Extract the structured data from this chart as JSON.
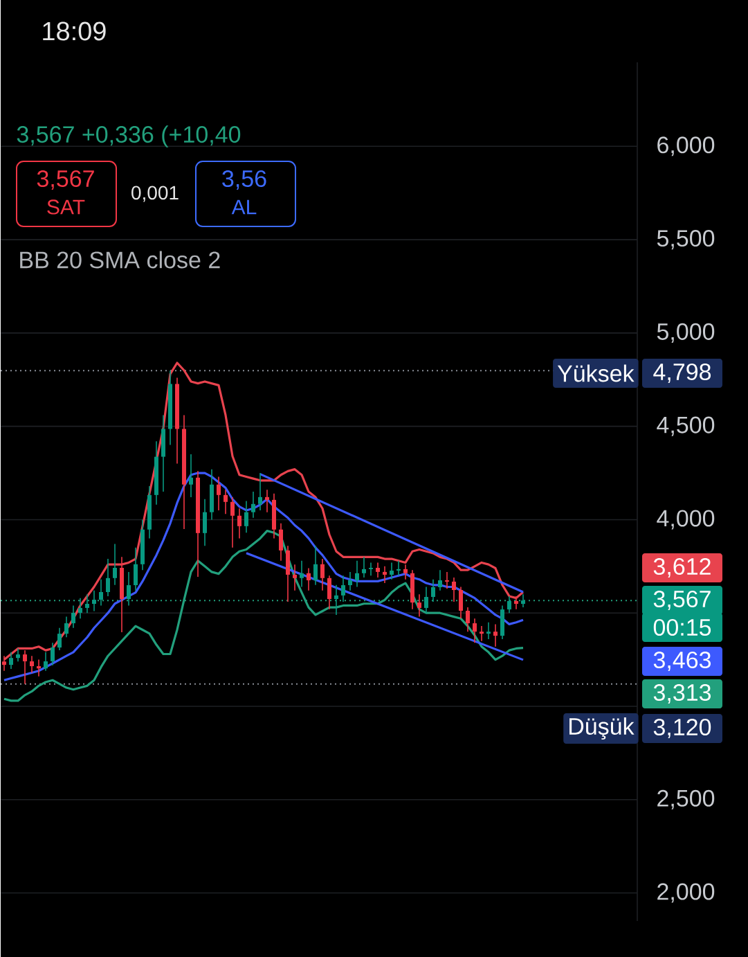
{
  "chart_data": {
    "type": "candlestick",
    "subtitle": "3,567  +0,336 (+10,40",
    "categories": [
      null,
      null,
      null,
      null,
      null,
      null,
      null,
      null,
      null,
      null,
      null,
      null,
      null,
      null,
      null,
      null,
      null,
      null,
      null,
      null,
      null,
      null,
      null,
      null,
      null,
      null,
      null,
      null,
      null,
      null,
      null,
      null,
      null,
      null,
      null,
      null,
      null,
      null,
      null,
      null,
      null,
      null,
      null,
      null,
      null,
      null,
      null,
      null,
      null,
      null,
      null,
      null,
      null,
      null,
      null,
      null,
      null,
      null,
      null,
      null,
      null,
      null,
      null,
      null,
      null,
      null,
      null,
      null,
      null,
      null,
      null,
      null,
      null,
      null,
      null,
      null
    ],
    "ohlc": [
      [
        3.24,
        3.27,
        3.19,
        3.222
      ],
      [
        3.222,
        3.29,
        3.2,
        3.259
      ],
      [
        3.259,
        3.31,
        3.24,
        3.278
      ],
      [
        3.278,
        3.3,
        3.12,
        3.241
      ],
      [
        3.241,
        3.27,
        3.18,
        3.215
      ],
      [
        3.215,
        3.25,
        3.16,
        3.203
      ],
      [
        3.203,
        3.29,
        3.19,
        3.241
      ],
      [
        3.241,
        3.34,
        3.22,
        3.315
      ],
      [
        3.315,
        3.42,
        3.3,
        3.389
      ],
      [
        3.389,
        3.48,
        3.37,
        3.445
      ],
      [
        3.445,
        3.54,
        3.42,
        3.501
      ],
      [
        3.501,
        3.58,
        3.47,
        3.527
      ],
      [
        3.527,
        3.6,
        3.5,
        3.549
      ],
      [
        3.549,
        3.62,
        3.51,
        3.571
      ],
      [
        3.571,
        3.68,
        3.54,
        3.612
      ],
      [
        3.612,
        3.79,
        3.59,
        3.687
      ],
      [
        3.687,
        3.87,
        3.65,
        3.742
      ],
      [
        3.742,
        3.8,
        3.397,
        3.575
      ],
      [
        3.575,
        3.72,
        3.54,
        3.649
      ],
      [
        3.649,
        3.85,
        3.62,
        3.761
      ],
      [
        3.761,
        4.0,
        3.73,
        3.947
      ],
      [
        3.947,
        4.18,
        3.9,
        4.132
      ],
      [
        4.132,
        4.42,
        4.08,
        4.337
      ],
      [
        4.337,
        4.56,
        4.15,
        4.486
      ],
      [
        4.486,
        4.798,
        4.4,
        4.727
      ],
      [
        4.727,
        4.76,
        4.3,
        4.486
      ],
      [
        4.486,
        4.56,
        3.95,
        4.188
      ],
      [
        4.188,
        4.35,
        4.12,
        4.225
      ],
      [
        4.225,
        4.26,
        3.694,
        3.928
      ],
      [
        3.928,
        4.11,
        3.86,
        4.04
      ],
      [
        4.04,
        4.27,
        4.0,
        4.188
      ],
      [
        4.188,
        4.23,
        4.05,
        4.132
      ],
      [
        4.132,
        4.16,
        4.03,
        4.095
      ],
      [
        4.095,
        4.12,
        3.85,
        4.021
      ],
      [
        4.021,
        4.06,
        3.9,
        3.965
      ],
      [
        3.965,
        4.1,
        3.93,
        4.04
      ],
      [
        4.04,
        4.15,
        4.01,
        4.084
      ],
      [
        4.084,
        4.25,
        4.05,
        4.121
      ],
      [
        4.121,
        4.16,
        4.04,
        4.106
      ],
      [
        4.106,
        4.14,
        3.9,
        3.947
      ],
      [
        3.947,
        3.98,
        3.78,
        3.835
      ],
      [
        3.835,
        3.86,
        3.56,
        3.705
      ],
      [
        3.705,
        3.76,
        3.62,
        3.687
      ],
      [
        3.687,
        3.78,
        3.64,
        3.713
      ],
      [
        3.713,
        3.74,
        3.62,
        3.675
      ],
      [
        3.675,
        3.86,
        3.65,
        3.761
      ],
      [
        3.761,
        3.79,
        3.62,
        3.687
      ],
      [
        3.687,
        3.7,
        3.52,
        3.575
      ],
      [
        3.575,
        3.65,
        3.49,
        3.594
      ],
      [
        3.594,
        3.7,
        3.56,
        3.649
      ],
      [
        3.649,
        3.72,
        3.62,
        3.675
      ],
      [
        3.675,
        3.78,
        3.64,
        3.713
      ],
      [
        3.713,
        3.8,
        3.69,
        3.735
      ],
      [
        3.735,
        3.77,
        3.7,
        3.742
      ],
      [
        3.742,
        3.77,
        3.69,
        3.72
      ],
      [
        3.72,
        3.75,
        3.66,
        3.705
      ],
      [
        3.705,
        3.77,
        3.68,
        3.727
      ],
      [
        3.727,
        3.78,
        3.7,
        3.735
      ],
      [
        3.735,
        3.76,
        3.68,
        3.713
      ],
      [
        3.713,
        3.73,
        3.52,
        3.556
      ],
      [
        3.556,
        3.6,
        3.48,
        3.527
      ],
      [
        3.527,
        3.64,
        3.5,
        3.586
      ],
      [
        3.586,
        3.68,
        3.56,
        3.638
      ],
      [
        3.638,
        3.73,
        3.62,
        3.675
      ],
      [
        3.675,
        3.72,
        3.63,
        3.668
      ],
      [
        3.668,
        3.69,
        3.56,
        3.623
      ],
      [
        3.623,
        3.64,
        3.47,
        3.512
      ],
      [
        3.512,
        3.53,
        3.4,
        3.445
      ],
      [
        3.445,
        3.47,
        3.34,
        3.4
      ],
      [
        3.4,
        3.43,
        3.35,
        3.389
      ],
      [
        3.389,
        3.45,
        3.36,
        3.4
      ],
      [
        3.4,
        3.44,
        3.32,
        3.378
      ],
      [
        3.378,
        3.54,
        3.36,
        3.519
      ],
      [
        3.519,
        3.59,
        3.5,
        3.564
      ],
      [
        3.564,
        3.59,
        3.52,
        3.549
      ],
      [
        3.549,
        3.6,
        3.53,
        3.567
      ]
    ],
    "colors": [
      "#f23645",
      "#089981",
      "#089981",
      "#f23645",
      "#f23645",
      "#f23645",
      "#089981",
      "#089981",
      "#089981",
      "#089981",
      "#089981",
      "#089981",
      "#089981",
      "#089981",
      "#089981",
      "#089981",
      "#089981",
      "#f23645",
      "#089981",
      "#089981",
      "#089981",
      "#089981",
      "#089981",
      "#089981",
      "#089981",
      "#f23645",
      "#f23645",
      "#089981",
      "#f23645",
      "#089981",
      "#089981",
      "#f23645",
      "#f23645",
      "#f23645",
      "#f23645",
      "#089981",
      "#089981",
      "#089981",
      "#f23645",
      "#f23645",
      "#f23645",
      "#f23645",
      "#f23645",
      "#089981",
      "#f23645",
      "#089981",
      "#f23645",
      "#f23645",
      "#089981",
      "#089981",
      "#089981",
      "#089981",
      "#089981",
      "#089981",
      "#f23645",
      "#f23645",
      "#089981",
      "#089981",
      "#f23645",
      "#f23645",
      "#f23645",
      "#089981",
      "#089981",
      "#089981",
      "#f23645",
      "#f23645",
      "#f23645",
      "#f23645",
      "#f23645",
      "#f23645",
      "#089981",
      "#f23645",
      "#089981",
      "#089981",
      "#f23645",
      "#089981"
    ],
    "series": [
      {
        "type": "line",
        "color": "#e8434e",
        "values": [
          3.25,
          3.28,
          3.31,
          3.31,
          3.31,
          3.32,
          3.3,
          3.31,
          3.36,
          3.41,
          3.47,
          3.54,
          3.59,
          3.64,
          3.7,
          3.76,
          3.76,
          3.76,
          3.77,
          3.79,
          null,
          null,
          null,
          4.49,
          4.78,
          4.84,
          4.8,
          4.74,
          4.73,
          4.74,
          4.73,
          4.72,
          4.56,
          4.34,
          4.24,
          4.23,
          4.22,
          4.21,
          4.21,
          4.21,
          4.24,
          4.26,
          4.27,
          4.24,
          4.15,
          4.12,
          4.06,
          3.92,
          3.83,
          3.8,
          3.8,
          3.8,
          3.8,
          3.8,
          3.8,
          3.79,
          3.79,
          3.78,
          3.77,
          3.83,
          3.84,
          3.83,
          3.82,
          3.8,
          3.79,
          3.77,
          3.73,
          3.73,
          3.75,
          3.77,
          3.76,
          3.74,
          3.65,
          3.59,
          3.58,
          3.612
        ]
      },
      {
        "type": "line",
        "color": "#3d5afe",
        "values": [
          3.14,
          3.15,
          3.16,
          3.17,
          3.18,
          3.19,
          3.21,
          3.23,
          3.25,
          3.27,
          3.29,
          3.33,
          3.37,
          3.42,
          3.46,
          3.5,
          3.55,
          3.57,
          3.59,
          3.61,
          3.67,
          3.74,
          3.81,
          3.89,
          3.98,
          4.09,
          4.18,
          4.24,
          4.25,
          4.25,
          4.23,
          4.2,
          4.17,
          4.11,
          4.07,
          4.05,
          4.06,
          4.08,
          4.11,
          4.07,
          4.04,
          4.01,
          3.97,
          3.94,
          3.9,
          3.85,
          3.81,
          3.76,
          3.71,
          3.69,
          3.68,
          3.67,
          3.67,
          3.67,
          3.67,
          3.68,
          3.69,
          3.7,
          3.71,
          3.69,
          3.68,
          3.66,
          3.65,
          3.65,
          3.64,
          3.64,
          3.62,
          3.6,
          3.58,
          3.55,
          3.52,
          3.49,
          3.47,
          3.44,
          3.45,
          3.463
        ]
      },
      {
        "type": "line",
        "color": "#22a07d",
        "values": [
          3.04,
          3.03,
          3.03,
          3.06,
          3.08,
          3.11,
          3.13,
          3.14,
          3.12,
          3.1,
          3.09,
          3.1,
          3.11,
          3.14,
          3.21,
          3.27,
          3.31,
          3.35,
          3.39,
          3.43,
          3.41,
          3.39,
          3.33,
          3.28,
          3.28,
          3.41,
          3.57,
          3.72,
          3.78,
          3.75,
          3.72,
          3.71,
          3.75,
          3.8,
          3.83,
          3.84,
          3.87,
          3.9,
          3.94,
          3.93,
          3.91,
          null,
          3.69,
          3.61,
          3.53,
          3.49,
          3.51,
          3.53,
          3.53,
          3.54,
          3.54,
          3.54,
          3.55,
          3.55,
          3.55,
          3.57,
          3.61,
          3.64,
          3.66,
          3.6,
          3.52,
          3.5,
          3.5,
          3.5,
          3.49,
          3.48,
          3.47,
          3.43,
          3.38,
          3.32,
          3.29,
          3.25,
          3.27,
          3.3,
          3.31,
          3.313
        ]
      },
      {
        "type": "line",
        "color": "#3d5afe",
        "values": [
          null,
          null,
          null,
          null,
          null,
          null,
          null,
          null,
          null,
          null,
          null,
          null,
          null,
          null,
          null,
          null,
          null,
          null,
          null,
          null,
          null,
          null,
          null,
          null,
          null,
          null,
          null,
          null,
          null,
          null,
          null,
          null,
          null,
          null,
          null,
          null,
          null,
          4.244,
          null,
          null,
          null,
          null,
          null,
          null,
          null,
          null,
          null,
          null,
          null,
          null,
          null,
          null,
          null,
          null,
          null,
          null,
          null,
          null,
          null,
          null,
          null,
          null,
          null,
          null,
          null,
          null,
          null,
          null,
          null,
          null,
          null,
          null,
          null,
          null,
          null,
          3.612
        ]
      },
      {
        "type": "line",
        "color": "#3d5afe",
        "values": [
          null,
          null,
          null,
          null,
          null,
          null,
          null,
          null,
          null,
          null,
          null,
          null,
          null,
          null,
          null,
          null,
          null,
          null,
          null,
          null,
          null,
          null,
          null,
          null,
          null,
          null,
          null,
          null,
          null,
          null,
          null,
          null,
          null,
          null,
          null,
          3.821,
          null,
          null,
          null,
          null,
          null,
          null,
          null,
          null,
          null,
          null,
          null,
          null,
          null,
          null,
          null,
          null,
          null,
          null,
          null,
          null,
          null,
          null,
          null,
          null,
          null,
          null,
          null,
          null,
          null,
          null,
          null,
          null,
          null,
          null,
          null,
          null,
          null,
          null,
          null,
          3.249
        ]
      }
    ],
    "ylim": [
      1.85,
      6.45
    ],
    "yticks": [
      {
        "value": 2.0,
        "label": "2,000"
      },
      {
        "value": 2.5,
        "label": "2,500"
      },
      {
        "value": 3.0,
        "label": null
      },
      {
        "value": 3.5,
        "label": null
      },
      {
        "value": 4.0,
        "label": "4,000"
      },
      {
        "value": 4.5,
        "label": "4,500"
      },
      {
        "value": 5.0,
        "label": "5,000"
      },
      {
        "value": 5.5,
        "label": "5,500"
      },
      {
        "value": 6.0,
        "label": "6,000"
      }
    ],
    "grid": "y",
    "tick_labels": "y",
    "ref_lines": [
      {
        "axis": "y",
        "value": 4.798,
        "label": "Yüksek",
        "color": "#8a8f98",
        "line_style": "dotted"
      },
      {
        "axis": "y",
        "value": 3.567,
        "color": "#22a07d",
        "line_style": "dotted"
      },
      {
        "axis": "y",
        "value": 3.12,
        "label": "Düşük",
        "color": "#8a8f98",
        "line_style": "dotted"
      }
    ],
    "annotations": [
      "18:09",
      "3,567",
      "SAT",
      "0,001",
      "3,56",
      "AL",
      "BB 20 SMA close 2",
      "4,798",
      "3,612",
      "3,567",
      "00:15",
      "3,463",
      "3,313",
      "3,120"
    ]
  }
}
